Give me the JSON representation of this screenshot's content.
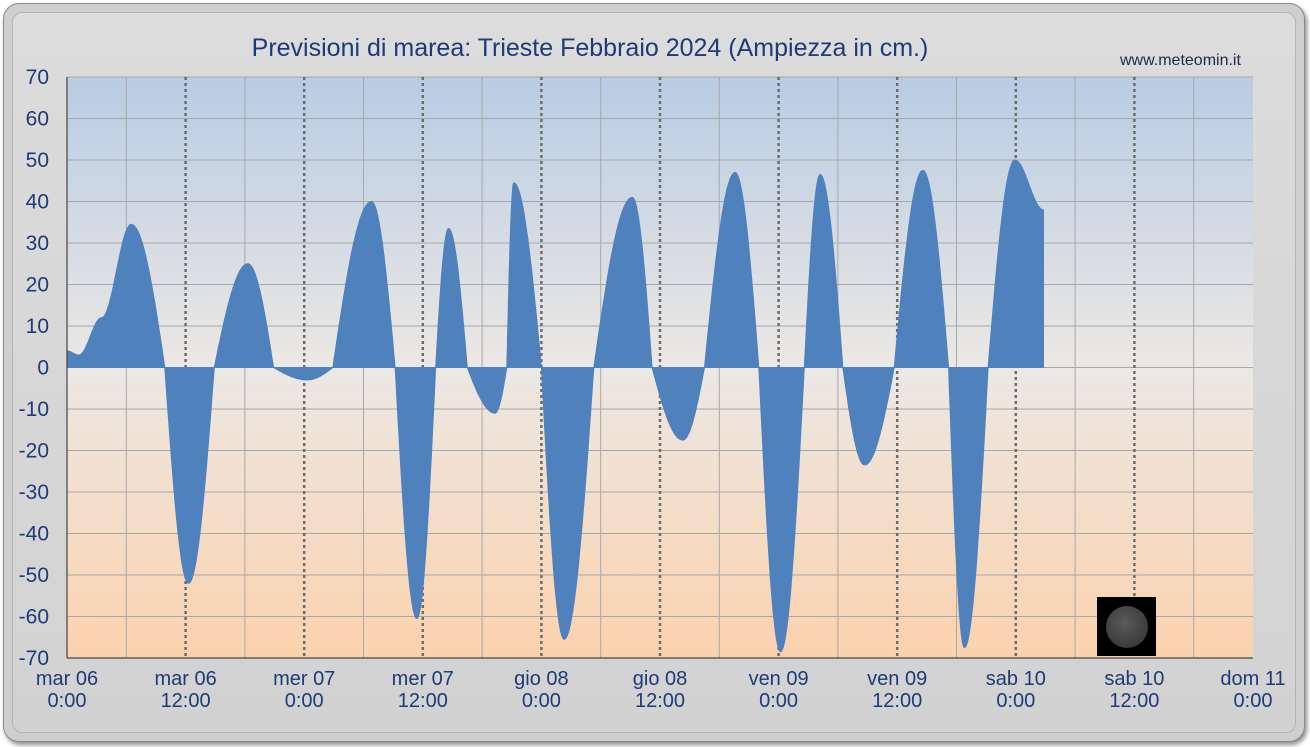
{
  "title": "Previsioni di marea: Trieste Febbraio 2024 (Ampiezza in cm.)",
  "site": "www.meteomin.it",
  "colors": {
    "fill": "#4f81bd",
    "bg_top": "#b8cce4",
    "bg_bottom": "#fbd2ad",
    "text": "#1f3a78"
  },
  "chart_data": {
    "type": "area",
    "title": "Previsioni di marea: Trieste Febbraio 2024 (Ampiezza in cm.)",
    "xlabel": "",
    "ylabel": "",
    "ylim": [
      -70,
      70
    ],
    "yticks": [
      70,
      60,
      50,
      40,
      30,
      20,
      10,
      0,
      -10,
      -20,
      -30,
      -40,
      -50,
      -60,
      -70
    ],
    "xlim_hours": [
      0,
      120
    ],
    "xticks": [
      {
        "day": "mar",
        "date": "06",
        "time": "0:00"
      },
      {
        "day": "mar",
        "date": "06",
        "time": "12:00"
      },
      {
        "day": "mer",
        "date": "07",
        "time": "0:00"
      },
      {
        "day": "mer",
        "date": "07",
        "time": "12:00"
      },
      {
        "day": "gio",
        "date": "08",
        "time": "0:00"
      },
      {
        "day": "gio",
        "date": "08",
        "time": "12:00"
      },
      {
        "day": "ven",
        "date": "09",
        "time": "0:00"
      },
      {
        "day": "ven",
        "date": "09",
        "time": "12:00"
      },
      {
        "day": "sab",
        "date": "10",
        "time": "0:00"
      },
      {
        "day": "sab",
        "date": "10",
        "time": "12:00"
      },
      {
        "day": "dom",
        "date": "11",
        "time": "0:00"
      }
    ],
    "moon_phase": "new-moon",
    "grid": true,
    "series": [
      {
        "x_hours": [
          0,
          1.2,
          3.5,
          6.5,
          9.9,
          12.3,
          14.9,
          18.3,
          20.9,
          24.3,
          26.9,
          30.8,
          33.2,
          35.4,
          37.3,
          38.6,
          40.5,
          43.3,
          44.5,
          45.2,
          48.0,
          50.3,
          53.3,
          57.2,
          59.2,
          62.3,
          64.5,
          67.6,
          70.0,
          72.2,
          74.6,
          76.2,
          78.5,
          80.7,
          83.7,
          86.6,
          89.2,
          90.8,
          93.2,
          95.9,
          98.8,
          102.1,
          104.3,
          107.1,
          110.9,
          114.0,
          116.4,
          118.7,
          120.0
        ],
        "y_cm": [
          4,
          3,
          12,
          34.5,
          0,
          -52,
          0,
          25,
          0,
          -3,
          0,
          40,
          0,
          -60.5,
          0,
          33.5,
          0,
          -11,
          0,
          44.5,
          0,
          -65.5,
          0,
          41,
          0,
          -17.5,
          0,
          47,
          0,
          -68.5,
          0,
          46.5,
          0,
          -23.5,
          0,
          47.5,
          0,
          -67.5,
          0,
          50,
          38,
          0,
          0,
          0,
          0,
          0,
          0,
          0,
          0
        ]
      }
    ]
  }
}
